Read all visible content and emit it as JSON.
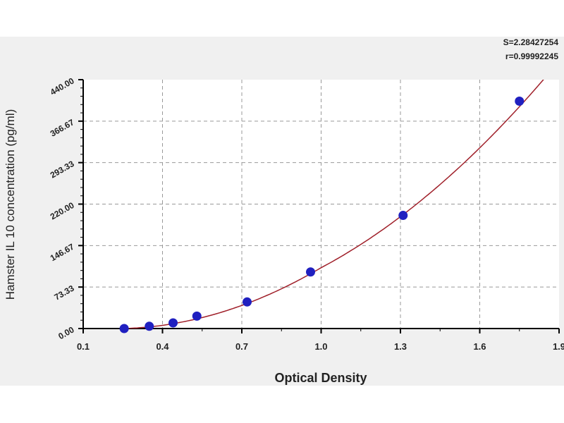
{
  "chart_data": {
    "type": "scatter",
    "title": "",
    "xlabel": "Optical Density",
    "ylabel": "Hamster IL 10 concentration (pg/ml)",
    "xlim": [
      0.1,
      1.9
    ],
    "ylim": [
      0,
      440
    ],
    "xticks": [
      "0.1",
      "0.4",
      "0.7",
      "1.0",
      "1.3",
      "1.6",
      "1.9"
    ],
    "yticks": [
      "0.00",
      "73.33",
      "146.67",
      "220.00",
      "293.33",
      "366.67",
      "440.00"
    ],
    "grid": true,
    "points": {
      "x": [
        0.255,
        0.35,
        0.44,
        0.53,
        0.72,
        0.96,
        1.31,
        1.75
      ],
      "y": [
        0,
        4,
        10,
        22,
        47,
        100,
        200,
        402
      ]
    },
    "fit": {
      "type": "curve",
      "color": "#a0202a"
    },
    "marker_color": "#2020c0",
    "annotations": [
      "S=2.28427254",
      "r=0.99992245"
    ]
  }
}
